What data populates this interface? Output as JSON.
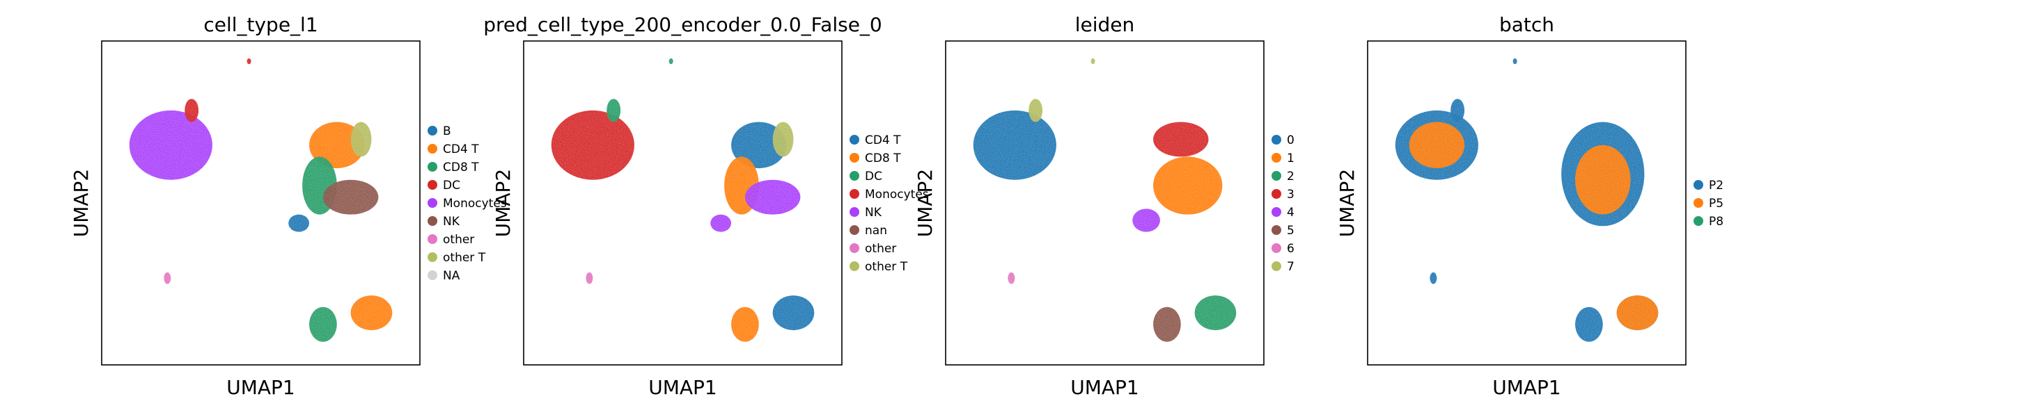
{
  "chart_data": [
    {
      "type": "scatter",
      "title": "cell_type_l1",
      "xlabel": "UMAP1",
      "ylabel": "UMAP2",
      "grid": false,
      "legend_position": "right",
      "legend": [
        {
          "name": "B",
          "color": "#1f77b4"
        },
        {
          "name": "CD4 T",
          "color": "#ff7f0e"
        },
        {
          "name": "CD8 T",
          "color": "#279e68"
        },
        {
          "name": "DC",
          "color": "#d62728"
        },
        {
          "name": "Monocytes",
          "color": "#aa40fc"
        },
        {
          "name": "NK",
          "color": "#8c564b"
        },
        {
          "name": "other",
          "color": "#e377c2"
        },
        {
          "name": "other T",
          "color": "#b5bd61"
        },
        {
          "name": "NA",
          "color": "#d3d3d3"
        }
      ],
      "clusters": [
        {
          "label": "Monocytes",
          "color": "#aa40fc",
          "x": [
            -10,
            -4
          ],
          "y": [
            6,
            12
          ]
        },
        {
          "label": "DC",
          "color": "#d62728",
          "x": [
            -6,
            -5
          ],
          "y": [
            11,
            13
          ]
        },
        {
          "label": "DC",
          "color": "#d62728",
          "x": [
            -1.5,
            -1.2
          ],
          "y": [
            16,
            16.5
          ]
        },
        {
          "label": "CD4 T",
          "color": "#ff7f0e",
          "x": [
            3,
            7
          ],
          "y": [
            7,
            11
          ]
        },
        {
          "label": "CD8 T",
          "color": "#279e68",
          "x": [
            2.5,
            5
          ],
          "y": [
            3,
            8
          ]
        },
        {
          "label": "NK",
          "color": "#8c564b",
          "x": [
            4,
            8
          ],
          "y": [
            3,
            6
          ]
        },
        {
          "label": "other T",
          "color": "#b5bd61",
          "x": [
            6,
            7.5
          ],
          "y": [
            8,
            11
          ]
        },
        {
          "label": "B",
          "color": "#1f77b4",
          "x": [
            1.5,
            3
          ],
          "y": [
            1.5,
            3
          ]
        },
        {
          "label": "other",
          "color": "#e377c2",
          "x": [
            -7.5,
            -7
          ],
          "y": [
            -3,
            -2
          ]
        },
        {
          "label": "CD8 T",
          "color": "#279e68",
          "x": [
            3,
            5
          ],
          "y": [
            -8,
            -5
          ]
        },
        {
          "label": "CD4 T",
          "color": "#ff7f0e",
          "x": [
            6,
            9
          ],
          "y": [
            -7,
            -4
          ]
        }
      ]
    },
    {
      "type": "scatter",
      "title": "pred_cell_type_200_encoder_0.0_False_0",
      "xlabel": "UMAP1",
      "ylabel": "UMAP2",
      "grid": false,
      "legend_position": "right",
      "legend": [
        {
          "name": "CD4 T",
          "color": "#1f77b4"
        },
        {
          "name": "CD8 T",
          "color": "#ff7f0e"
        },
        {
          "name": "DC",
          "color": "#279e68"
        },
        {
          "name": "Monocytes",
          "color": "#d62728"
        },
        {
          "name": "NK",
          "color": "#aa40fc"
        },
        {
          "name": "nan",
          "color": "#8c564b"
        },
        {
          "name": "other",
          "color": "#e377c2"
        },
        {
          "name": "other T",
          "color": "#b5bd61"
        }
      ],
      "clusters": [
        {
          "label": "Monocytes",
          "color": "#d62728",
          "x": [
            -10,
            -4
          ],
          "y": [
            6,
            12
          ]
        },
        {
          "label": "DC",
          "color": "#279e68",
          "x": [
            -6,
            -5
          ],
          "y": [
            11,
            13
          ]
        },
        {
          "label": "DC",
          "color": "#279e68",
          "x": [
            -1.5,
            -1.2
          ],
          "y": [
            16,
            16.5
          ]
        },
        {
          "label": "CD4 T",
          "color": "#1f77b4",
          "x": [
            3,
            7
          ],
          "y": [
            7,
            11
          ]
        },
        {
          "label": "CD8 T",
          "color": "#ff7f0e",
          "x": [
            2.5,
            5
          ],
          "y": [
            3,
            8
          ]
        },
        {
          "label": "NK",
          "color": "#aa40fc",
          "x": [
            4,
            8
          ],
          "y": [
            3,
            6
          ]
        },
        {
          "label": "other T",
          "color": "#b5bd61",
          "x": [
            6,
            7.5
          ],
          "y": [
            8,
            11
          ]
        },
        {
          "label": "NK",
          "color": "#aa40fc",
          "x": [
            1.5,
            3
          ],
          "y": [
            1.5,
            3
          ]
        },
        {
          "label": "other",
          "color": "#e377c2",
          "x": [
            -7.5,
            -7
          ],
          "y": [
            -3,
            -2
          ]
        },
        {
          "label": "CD8 T",
          "color": "#ff7f0e",
          "x": [
            3,
            5
          ],
          "y": [
            -8,
            -5
          ]
        },
        {
          "label": "CD4 T",
          "color": "#1f77b4",
          "x": [
            6,
            9
          ],
          "y": [
            -7,
            -4
          ]
        }
      ]
    },
    {
      "type": "scatter",
      "title": "leiden",
      "xlabel": "UMAP1",
      "ylabel": "UMAP2",
      "grid": false,
      "legend_position": "right",
      "legend": [
        {
          "name": "0",
          "color": "#1f77b4"
        },
        {
          "name": "1",
          "color": "#ff7f0e"
        },
        {
          "name": "2",
          "color": "#279e68"
        },
        {
          "name": "3",
          "color": "#d62728"
        },
        {
          "name": "4",
          "color": "#aa40fc"
        },
        {
          "name": "5",
          "color": "#8c564b"
        },
        {
          "name": "6",
          "color": "#e377c2"
        },
        {
          "name": "7",
          "color": "#b5bd61"
        }
      ],
      "clusters": [
        {
          "label": "0",
          "color": "#1f77b4",
          "x": [
            -10,
            -4
          ],
          "y": [
            6,
            12
          ]
        },
        {
          "label": "7",
          "color": "#b5bd61",
          "x": [
            -6,
            -5
          ],
          "y": [
            11,
            13
          ]
        },
        {
          "label": "7",
          "color": "#b5bd61",
          "x": [
            -1.5,
            -1.2
          ],
          "y": [
            16,
            16.5
          ]
        },
        {
          "label": "3",
          "color": "#d62728",
          "x": [
            3,
            7
          ],
          "y": [
            8,
            11
          ]
        },
        {
          "label": "1",
          "color": "#ff7f0e",
          "x": [
            3,
            8
          ],
          "y": [
            3,
            8
          ]
        },
        {
          "label": "4",
          "color": "#aa40fc",
          "x": [
            1.5,
            3.5
          ],
          "y": [
            1.5,
            3.5
          ]
        },
        {
          "label": "6",
          "color": "#e377c2",
          "x": [
            -7.5,
            -7
          ],
          "y": [
            -3,
            -2
          ]
        },
        {
          "label": "5",
          "color": "#8c564b",
          "x": [
            3,
            5
          ],
          "y": [
            -8,
            -5
          ]
        },
        {
          "label": "2",
          "color": "#279e68",
          "x": [
            6,
            9
          ],
          "y": [
            -7,
            -4
          ]
        }
      ]
    },
    {
      "type": "scatter",
      "title": "batch",
      "xlabel": "UMAP1",
      "ylabel": "UMAP2",
      "grid": false,
      "legend_position": "right",
      "legend": [
        {
          "name": "P2",
          "color": "#1f77b4"
        },
        {
          "name": "P5",
          "color": "#ff7f0e"
        },
        {
          "name": "P8",
          "color": "#279e68"
        }
      ],
      "clusters": [
        {
          "label": "P2",
          "color": "#1f77b4",
          "x": [
            -10,
            -4
          ],
          "y": [
            6,
            12
          ]
        },
        {
          "label": "P5",
          "color": "#ff7f0e",
          "x": [
            -9,
            -5
          ],
          "y": [
            7,
            11
          ]
        },
        {
          "label": "P2",
          "color": "#1f77b4",
          "x": [
            -6,
            -5
          ],
          "y": [
            11,
            13
          ]
        },
        {
          "label": "P2",
          "color": "#1f77b4",
          "x": [
            -1.5,
            -1.2
          ],
          "y": [
            16,
            16.5
          ]
        },
        {
          "label": "P2",
          "color": "#1f77b4",
          "x": [
            2,
            8
          ],
          "y": [
            2,
            11
          ]
        },
        {
          "label": "P5",
          "color": "#ff7f0e",
          "x": [
            3,
            7
          ],
          "y": [
            3,
            9
          ]
        },
        {
          "label": "P2",
          "color": "#1f77b4",
          "x": [
            -7.5,
            -7
          ],
          "y": [
            -3,
            -2
          ]
        },
        {
          "label": "P2",
          "color": "#1f77b4",
          "x": [
            3,
            5
          ],
          "y": [
            -8,
            -5
          ]
        },
        {
          "label": "P2",
          "color": "#1f77b4",
          "x": [
            6,
            9
          ],
          "y": [
            -7,
            -4
          ]
        },
        {
          "label": "P5",
          "color": "#ff7f0e",
          "x": [
            6,
            9
          ],
          "y": [
            -7,
            -4
          ]
        }
      ]
    }
  ]
}
